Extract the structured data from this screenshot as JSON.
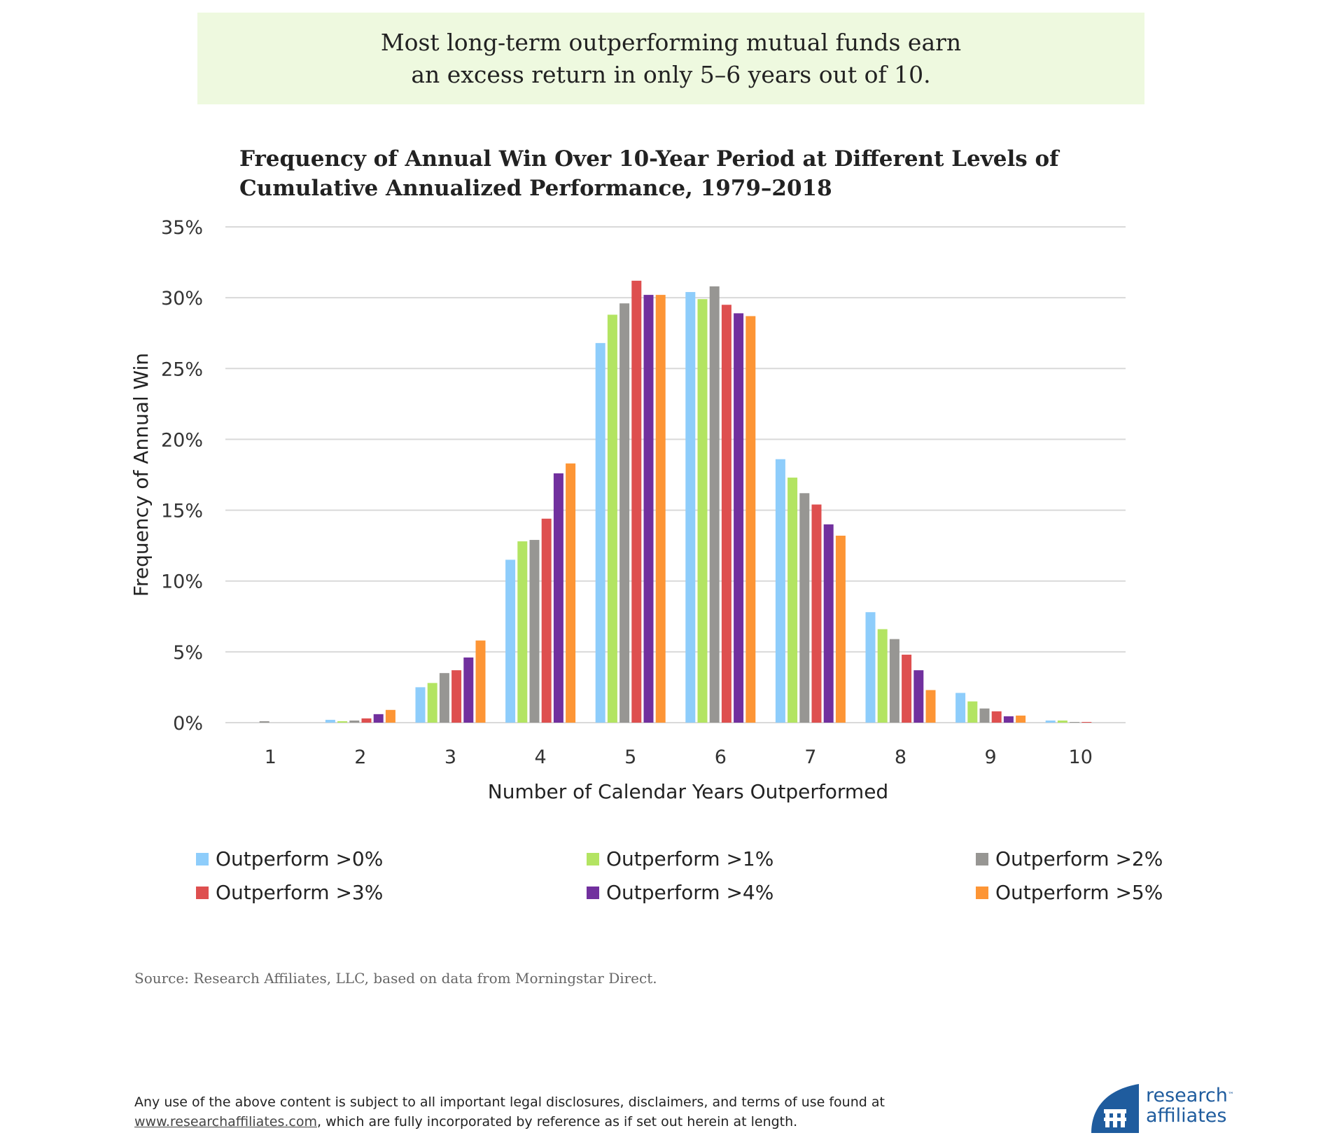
{
  "callout": {
    "line1": "Most long-term outperforming mutual funds earn",
    "line2": "an excess return in only 5–6 years out of 10."
  },
  "chart_data": {
    "type": "bar",
    "title": "Frequency of Annual Win Over 10-Year Period at Different Levels of Cumulative Annualized Performance, 1979–2018",
    "title_lines": [
      "Frequency of Annual Win Over 10-Year Period at Different Levels of",
      "Cumulative Annualized Performance, 1979–2018"
    ],
    "xlabel": "Number of Calendar Years Outperformed",
    "ylabel": "Frequency of Annual Win",
    "categories": [
      "1",
      "2",
      "3",
      "4",
      "5",
      "6",
      "7",
      "8",
      "9",
      "10"
    ],
    "ylim": [
      0,
      35
    ],
    "yticks": [
      0,
      5,
      10,
      15,
      20,
      25,
      30,
      35
    ],
    "ytick_labels": [
      "0%",
      "5%",
      "10%",
      "15%",
      "20%",
      "25%",
      "30%",
      "35%"
    ],
    "grid": true,
    "legend_position": "bottom",
    "series": [
      {
        "name": "Outperform >0%",
        "color": "#8ecdfb",
        "values": [
          0.0,
          0.2,
          2.5,
          11.5,
          26.8,
          30.4,
          18.6,
          7.8,
          2.1,
          0.15
        ]
      },
      {
        "name": "Outperform >1%",
        "color": "#b3e462",
        "values": [
          0.0,
          0.1,
          2.8,
          12.8,
          28.8,
          29.9,
          17.3,
          6.6,
          1.5,
          0.15
        ]
      },
      {
        "name": "Outperform >2%",
        "color": "#979693",
        "values": [
          0.1,
          0.15,
          3.5,
          12.9,
          29.6,
          30.8,
          16.2,
          5.9,
          1.0,
          0.05
        ]
      },
      {
        "name": "Outperform >3%",
        "color": "#de4f4f",
        "values": [
          0.0,
          0.3,
          3.7,
          14.4,
          31.2,
          29.5,
          15.4,
          4.8,
          0.8,
          0.05
        ]
      },
      {
        "name": "Outperform >4%",
        "color": "#71309e",
        "values": [
          0.0,
          0.6,
          4.6,
          17.6,
          30.2,
          28.9,
          14.0,
          3.7,
          0.45,
          0.0
        ]
      },
      {
        "name": "Outperform >5%",
        "color": "#fd9535",
        "values": [
          0.0,
          0.9,
          5.8,
          18.3,
          30.2,
          28.7,
          13.2,
          2.3,
          0.5,
          0.0
        ]
      }
    ]
  },
  "source": "Source: Research Affiliates, LLC, based on data from Morningstar Direct.",
  "disclaimer": {
    "line1": "Any use of the above content is subject to all important legal disclosures, disclaimers, and terms of use found at",
    "link": "www.researchaffiliates.com",
    "line2_rest": ", which are fully incorporated by reference as if set out herein at length."
  },
  "logo": {
    "line1": "research",
    "line2": "affiliates",
    "tm": "™",
    "color": "#1f5c9e"
  }
}
